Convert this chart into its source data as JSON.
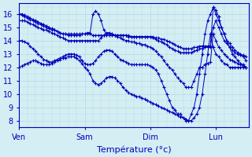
{
  "xlabel": "Température (°c)",
  "background_color": "#d4eef4",
  "grid_color": "#b8d8e0",
  "line_color": "#0000bb",
  "marker": "+",
  "day_labels": [
    "Ven",
    "Sam",
    "Dim",
    "Lun"
  ],
  "day_positions": [
    0,
    24,
    48,
    72
  ],
  "xlim": [
    0,
    84
  ],
  "ylim": [
    7.5,
    16.8
  ],
  "yticks": [
    8,
    9,
    10,
    11,
    12,
    13,
    14,
    15,
    16
  ],
  "series": [
    [
      16.0,
      16.0,
      15.9,
      15.8,
      15.7,
      15.6,
      15.5,
      15.4,
      15.3,
      15.2,
      15.1,
      15.0,
      14.9,
      14.8,
      14.7,
      14.6,
      14.5,
      14.5,
      14.4,
      14.4,
      14.4,
      14.4,
      14.4,
      14.5,
      14.5,
      14.5,
      14.5,
      14.4,
      14.4,
      14.4,
      14.4,
      14.4,
      14.4,
      14.4,
      14.4,
      14.4,
      14.4,
      14.4,
      14.4,
      14.4,
      14.4,
      14.3,
      14.3,
      14.3,
      14.3,
      14.3,
      14.3,
      14.3,
      14.3,
      14.3,
      14.2,
      14.2,
      14.1,
      14.1,
      14.0,
      13.9,
      13.8,
      13.7,
      13.6,
      13.5,
      13.4,
      13.4,
      13.4,
      13.4,
      13.5,
      13.5,
      13.6,
      13.6,
      13.6,
      13.6,
      13.6,
      15.0,
      15.5,
      15.0,
      14.5,
      14.0,
      13.8,
      13.5,
      13.3,
      13.1,
      13.0,
      12.9,
      12.8,
      12.5
    ],
    [
      16.0,
      15.9,
      15.8,
      15.7,
      15.6,
      15.5,
      15.4,
      15.3,
      15.2,
      15.1,
      15.0,
      14.9,
      14.8,
      14.8,
      14.7,
      14.6,
      14.5,
      14.5,
      14.5,
      14.5,
      14.5,
      14.5,
      14.5,
      14.5,
      14.5,
      14.6,
      14.6,
      16.0,
      16.2,
      16.0,
      15.5,
      14.8,
      14.5,
      14.5,
      14.5,
      14.4,
      14.4,
      14.4,
      14.4,
      14.4,
      14.3,
      14.3,
      14.3,
      14.3,
      14.3,
      14.3,
      14.3,
      14.3,
      14.3,
      14.2,
      14.1,
      14.0,
      13.9,
      13.8,
      13.7,
      13.5,
      13.4,
      13.3,
      13.2,
      13.1,
      13.1,
      13.1,
      13.1,
      13.1,
      13.2,
      13.3,
      13.4,
      13.4,
      13.5,
      13.5,
      13.5,
      16.5,
      16.3,
      15.8,
      15.0,
      14.5,
      14.0,
      13.8,
      13.5,
      13.3,
      13.1,
      13.0,
      12.9,
      12.8
    ],
    [
      15.5,
      15.5,
      15.5,
      15.4,
      15.3,
      15.2,
      15.1,
      15.0,
      14.9,
      14.8,
      14.8,
      14.7,
      14.6,
      14.5,
      14.4,
      14.3,
      14.2,
      14.1,
      14.0,
      14.0,
      14.0,
      14.0,
      14.0,
      14.0,
      14.0,
      14.0,
      14.0,
      14.0,
      14.0,
      14.0,
      14.2,
      14.4,
      14.6,
      14.6,
      14.5,
      14.4,
      14.3,
      14.2,
      14.1,
      14.0,
      14.0,
      13.9,
      13.9,
      13.8,
      13.8,
      13.7,
      13.7,
      13.6,
      13.5,
      13.4,
      13.2,
      13.0,
      12.8,
      12.5,
      12.2,
      12.0,
      11.8,
      11.5,
      11.2,
      11.0,
      10.8,
      10.5,
      10.5,
      10.5,
      11.0,
      11.5,
      12.0,
      12.0,
      12.2,
      12.3,
      12.4,
      14.5,
      14.0,
      13.5,
      13.3,
      13.0,
      12.8,
      12.6,
      12.5,
      12.4,
      12.3,
      12.2,
      12.1,
      12.0
    ],
    [
      14.0,
      14.0,
      13.9,
      13.8,
      13.6,
      13.4,
      13.2,
      13.0,
      12.8,
      12.6,
      12.5,
      12.4,
      12.4,
      12.5,
      12.6,
      12.7,
      12.8,
      12.9,
      13.0,
      13.0,
      13.0,
      12.9,
      12.8,
      12.5,
      12.3,
      12.2,
      12.2,
      12.3,
      12.5,
      12.8,
      13.0,
      13.2,
      13.3,
      13.3,
      13.2,
      13.0,
      12.8,
      12.6,
      12.5,
      12.4,
      12.3,
      12.2,
      12.2,
      12.2,
      12.2,
      12.2,
      12.2,
      12.2,
      12.1,
      12.0,
      11.8,
      11.5,
      11.0,
      10.5,
      10.0,
      9.5,
      9.0,
      8.8,
      8.5,
      8.5,
      8.2,
      8.0,
      8.0,
      8.5,
      9.0,
      10.0,
      11.5,
      13.0,
      14.5,
      15.5,
      16.0,
      16.5,
      16.0,
      15.5,
      15.0,
      14.5,
      14.0,
      13.5,
      13.0,
      12.8,
      12.5,
      12.3,
      12.2,
      12.0
    ],
    [
      12.0,
      12.1,
      12.2,
      12.3,
      12.4,
      12.5,
      12.5,
      12.4,
      12.3,
      12.2,
      12.2,
      12.2,
      12.3,
      12.4,
      12.5,
      12.6,
      12.7,
      12.7,
      12.8,
      12.8,
      12.8,
      12.7,
      12.5,
      12.3,
      12.0,
      11.8,
      11.5,
      11.0,
      10.8,
      10.7,
      10.8,
      11.0,
      11.2,
      11.3,
      11.3,
      11.2,
      11.0,
      10.8,
      10.5,
      10.3,
      10.1,
      10.0,
      9.9,
      9.8,
      9.8,
      9.7,
      9.6,
      9.5,
      9.4,
      9.3,
      9.2,
      9.1,
      9.0,
      8.9,
      8.8,
      8.7,
      8.6,
      8.5,
      8.4,
      8.3,
      8.2,
      8.1,
      8.0,
      8.0,
      8.2,
      8.5,
      9.0,
      10.0,
      11.5,
      13.0,
      14.5,
      13.5,
      13.0,
      12.8,
      12.5,
      12.3,
      12.2,
      12.0,
      12.0,
      12.0,
      12.0,
      12.0,
      12.0,
      12.0
    ]
  ]
}
